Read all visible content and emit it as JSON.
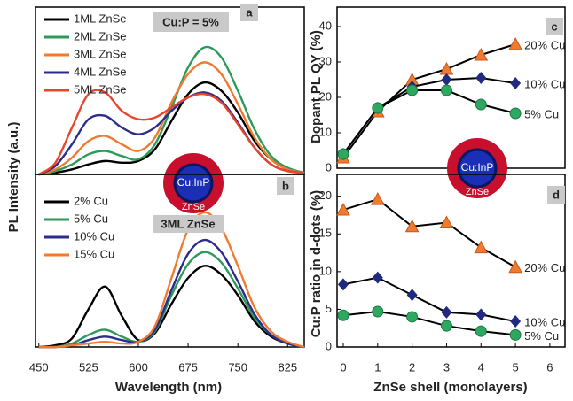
{
  "chart_data": [
    {
      "type": "line",
      "panel_label": "a",
      "note": "Cu:P = 5%",
      "ylabel": "PL Intensity (a.u.)",
      "inset": {
        "core": "Cu:InP",
        "shell": "ZnSe"
      },
      "xlim": [
        445,
        850
      ],
      "ylim": [
        0,
        100
      ],
      "legend": "upper-left",
      "x": [
        450,
        475,
        500,
        525,
        550,
        575,
        600,
        625,
        650,
        675,
        700,
        725,
        750,
        775,
        800,
        825,
        850
      ],
      "series": [
        {
          "name": "1ML ZnSe",
          "color": "#000000",
          "values": [
            0,
            1,
            3,
            6,
            8,
            7,
            8,
            15,
            32,
            48,
            55,
            50,
            37,
            20,
            9,
            3,
            1
          ]
        },
        {
          "name": "2ML ZnSe",
          "color": "#2e9a5a",
          "values": [
            0,
            2,
            6,
            12,
            14,
            11,
            9,
            18,
            40,
            64,
            76,
            70,
            50,
            27,
            11,
            4,
            1
          ]
        },
        {
          "name": "3ML ZnSe",
          "color": "#f07a30",
          "values": [
            0,
            3,
            10,
            20,
            23,
            18,
            14,
            22,
            43,
            60,
            67,
            60,
            42,
            22,
            9,
            3,
            1
          ]
        },
        {
          "name": "4ML ZnSe",
          "color": "#2c2c8c",
          "values": [
            0,
            5,
            18,
            33,
            35,
            28,
            24,
            28,
            38,
            46,
            49,
            44,
            31,
            16,
            6,
            2,
            1
          ]
        },
        {
          "name": "5ML ZnSe",
          "color": "#e8452c",
          "values": [
            0,
            7,
            28,
            48,
            49,
            38,
            33,
            34,
            40,
            46,
            48,
            43,
            30,
            16,
            6,
            2,
            1
          ]
        }
      ]
    },
    {
      "type": "line",
      "panel_label": "b",
      "note": "3ML ZnSe",
      "xlabel": "Wavelength (nm)",
      "xlim": [
        445,
        850
      ],
      "xticks": [
        450,
        525,
        600,
        675,
        750,
        825
      ],
      "ylim": [
        0,
        100
      ],
      "legend": "upper-left",
      "x": [
        450,
        475,
        500,
        525,
        550,
        575,
        600,
        625,
        650,
        675,
        700,
        725,
        750,
        775,
        800,
        825,
        850
      ],
      "series": [
        {
          "name": "2% Cu",
          "color": "#000000",
          "values": [
            0,
            1,
            5,
            22,
            35,
            18,
            4,
            8,
            25,
            40,
            47,
            42,
            30,
            15,
            6,
            2,
            0
          ]
        },
        {
          "name": "5% Cu",
          "color": "#2e9a5a",
          "values": [
            0,
            0,
            2,
            7,
            10,
            6,
            3,
            9,
            30,
            48,
            55,
            49,
            34,
            17,
            7,
            2,
            0
          ]
        },
        {
          "name": "10% Cu",
          "color": "#2c2c8c",
          "values": [
            0,
            0,
            1,
            4,
            6,
            4,
            3,
            10,
            33,
            54,
            62,
            55,
            38,
            19,
            7,
            2,
            0
          ]
        },
        {
          "name": "15% Cu",
          "color": "#f07a30",
          "values": [
            0,
            0,
            1,
            2,
            3,
            2,
            3,
            12,
            40,
            68,
            78,
            69,
            47,
            23,
            9,
            3,
            0
          ]
        }
      ]
    },
    {
      "type": "line",
      "panel_label": "c",
      "ylabel": "Dopant PL QY (%)",
      "inset": {
        "core": "Cu:InP",
        "shell": "ZnSe"
      },
      "xlim": [
        -0.18,
        6.44
      ],
      "ylim": [
        0,
        45.5
      ],
      "yticks": [
        0,
        10,
        20,
        30,
        40
      ],
      "x": [
        0,
        1,
        2,
        3,
        4,
        5
      ],
      "series": [
        {
          "name": "20% Cu",
          "color": "#f07a30",
          "marker": "triangle",
          "values": [
            3,
            16,
            25,
            28,
            32,
            35
          ]
        },
        {
          "name": "10% Cu",
          "color": "#1f2a80",
          "marker": "diamond",
          "values": [
            4,
            17,
            23,
            25,
            25.5,
            24
          ]
        },
        {
          "name": "5% Cu",
          "color": "#2ea860",
          "marker": "circle",
          "values": [
            4,
            17,
            22,
            22,
            18,
            15.5
          ]
        }
      ]
    },
    {
      "type": "line",
      "panel_label": "d",
      "ylabel": "Cu:P ratio in d-dots (%)",
      "xlabel": "ZnSe shell (monolayers)",
      "xlim": [
        -0.18,
        6.44
      ],
      "xticks": [
        0,
        1,
        2,
        3,
        4,
        5,
        6
      ],
      "ylim": [
        0,
        22.9
      ],
      "yticks": [
        0,
        5,
        10,
        15,
        20
      ],
      "x": [
        0,
        1,
        2,
        3,
        4,
        5
      ],
      "series": [
        {
          "name": "20% Cu",
          "color": "#f07a30",
          "marker": "triangle",
          "values": [
            18.2,
            19.6,
            16,
            16.5,
            13.2,
            10.6
          ]
        },
        {
          "name": "10% Cu",
          "color": "#1f2a80",
          "marker": "diamond",
          "values": [
            8.3,
            9.2,
            6.9,
            4.6,
            4.3,
            3.4
          ]
        },
        {
          "name": "5% Cu",
          "color": "#2ea860",
          "marker": "circle",
          "values": [
            4.2,
            4.7,
            4,
            2.8,
            2.1,
            1.6
          ]
        }
      ]
    }
  ]
}
